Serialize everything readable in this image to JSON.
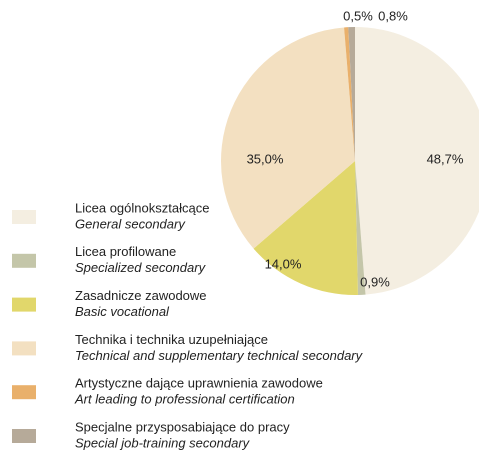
{
  "chart_data": {
    "type": "pie",
    "categories": [
      "Licea ogólnokształcące",
      "Licea profilowane",
      "Zasadnicze zawodowe",
      "Technika i technika uzupełniające",
      "Artystyczne dające uprawnienia zawodowe",
      "Specjalne przysposabiające do pracy"
    ],
    "category_translations": [
      "General secondary",
      "Specialized secondary",
      "Basic vocational",
      "Technical and supplementary technical secondary",
      "Art leading to professional certification",
      "Special job-training secondary"
    ],
    "values": [
      48.7,
      0.9,
      14.0,
      35.0,
      0.5,
      0.8
    ],
    "value_labels": [
      "48,7%",
      "0,9%",
      "14,0%",
      "35,0%",
      "0,5%",
      "0,8%"
    ],
    "colors": [
      "#f4eee1",
      "#c4c6a9",
      "#e1d76b",
      "#f3e0c1",
      "#e9b06b",
      "#b6aa99"
    ],
    "legend": "left"
  }
}
